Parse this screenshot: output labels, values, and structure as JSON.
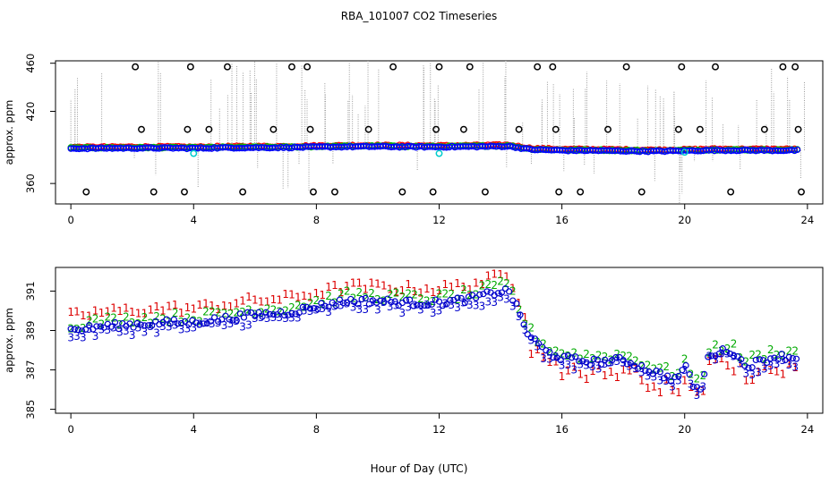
{
  "chart_data": {
    "title": "RBA_101007  CO2 Timeseries",
    "xlabel": "Hour of Day (UTC)",
    "panels": [
      {
        "type": "scatter",
        "ylabel": "approx. ppm",
        "xlim": [
          -0.5,
          24.5
        ],
        "ylim": [
          343,
          462
        ],
        "xticks": [
          0,
          4,
          8,
          12,
          16,
          20,
          24
        ],
        "yticks": [
          360,
          420,
          460
        ],
        "series": [
          {
            "name": "raw spikes",
            "color": "#a0a0a0",
            "style": "dotted-vertical"
          },
          {
            "name": "level 1",
            "color": "#ff0000",
            "style": "circle"
          },
          {
            "name": "level 2",
            "color": "#00bb00",
            "style": "circle"
          },
          {
            "name": "level 3",
            "color": "#0000ff",
            "style": "circle"
          },
          {
            "name": "calibration",
            "color": "#00cccc",
            "style": "circle"
          },
          {
            "name": "outliers",
            "color": "#000000",
            "style": "circle"
          }
        ],
        "baseline": [
          [
            0,
            389.2
          ],
          [
            1,
            389.4
          ],
          [
            2,
            389.5
          ],
          [
            3,
            389.6
          ],
          [
            4,
            389.4
          ],
          [
            5,
            389.8
          ],
          [
            6,
            389.9
          ],
          [
            7,
            390.0
          ],
          [
            8,
            390.4
          ],
          [
            9,
            390.7
          ],
          [
            10,
            390.8
          ],
          [
            11,
            390.6
          ],
          [
            12,
            390.5
          ],
          [
            13,
            390.7
          ],
          [
            14,
            391.0
          ],
          [
            14.3,
            391.0
          ],
          [
            15,
            388.3
          ],
          [
            16,
            387.6
          ],
          [
            17,
            387.5
          ],
          [
            18,
            387.2
          ],
          [
            19,
            386.9
          ],
          [
            20,
            387.3
          ],
          [
            21,
            387.8
          ],
          [
            22,
            387.7
          ],
          [
            23,
            387.6
          ],
          [
            23.7,
            387.6
          ]
        ],
        "outliers": [
          [
            0.5,
            353
          ],
          [
            2.1,
            457
          ],
          [
            2.3,
            405
          ],
          [
            2.7,
            353
          ],
          [
            3.7,
            353
          ],
          [
            3.8,
            405
          ],
          [
            3.9,
            457
          ],
          [
            4.5,
            405
          ],
          [
            5.1,
            457
          ],
          [
            5.6,
            353
          ],
          [
            6.6,
            405
          ],
          [
            7.2,
            457
          ],
          [
            7.7,
            457
          ],
          [
            7.8,
            405
          ],
          [
            7.9,
            353
          ],
          [
            8.6,
            353
          ],
          [
            9.7,
            405
          ],
          [
            10.5,
            457
          ],
          [
            10.8,
            353
          ],
          [
            11.8,
            353
          ],
          [
            11.9,
            405
          ],
          [
            12.0,
            457
          ],
          [
            12.8,
            405
          ],
          [
            13.0,
            457
          ],
          [
            13.5,
            353
          ],
          [
            14.6,
            405
          ],
          [
            15.2,
            457
          ],
          [
            15.7,
            457
          ],
          [
            15.8,
            405
          ],
          [
            15.9,
            353
          ],
          [
            16.6,
            353
          ],
          [
            17.5,
            405
          ],
          [
            18.1,
            457
          ],
          [
            18.6,
            353
          ],
          [
            19.8,
            405
          ],
          [
            19.9,
            457
          ],
          [
            20.5,
            405
          ],
          [
            21.0,
            457
          ],
          [
            21.5,
            353
          ],
          [
            22.6,
            405
          ],
          [
            23.2,
            457
          ],
          [
            23.6,
            457
          ],
          [
            23.7,
            405
          ],
          [
            23.8,
            353
          ]
        ],
        "calibration": [
          [
            4.0,
            385
          ],
          [
            12.0,
            385
          ],
          [
            20.0,
            386
          ]
        ]
      },
      {
        "type": "scatter",
        "ylabel": "approx. ppm",
        "xlim": [
          -0.5,
          24.5
        ],
        "ylim": [
          384.8,
          392.2
        ],
        "xticks": [
          0,
          4,
          8,
          12,
          16,
          20,
          24
        ],
        "yticks": [
          385,
          387,
          389,
          391
        ],
        "marker_labels": {
          "level1": "1",
          "level2": "2",
          "level3": "3",
          "avg": "o"
        },
        "series": [
          {
            "name": "level 1",
            "color": "#dd0000",
            "marker": "1",
            "offset": 0.75
          },
          {
            "name": "level 2",
            "color": "#00aa00",
            "marker": "2",
            "offset": 0.3
          },
          {
            "name": "level 3",
            "color": "#0000cc",
            "marker": "3",
            "offset": -0.25
          },
          {
            "name": "average",
            "color": "#0000cc",
            "marker": "o",
            "offset": 0.0
          }
        ],
        "baseline": [
          [
            0,
            389.0
          ],
          [
            1,
            389.2
          ],
          [
            2,
            389.3
          ],
          [
            3,
            389.4
          ],
          [
            4,
            389.4
          ],
          [
            5,
            389.6
          ],
          [
            6,
            389.8
          ],
          [
            7,
            389.9
          ],
          [
            8,
            390.2
          ],
          [
            9,
            390.5
          ],
          [
            10,
            390.5
          ],
          [
            11,
            390.4
          ],
          [
            12,
            390.4
          ],
          [
            13,
            390.6
          ],
          [
            14,
            391.0
          ],
          [
            14.3,
            391.0
          ],
          [
            14.9,
            388.8
          ],
          [
            15.5,
            387.9
          ],
          [
            16,
            387.6
          ],
          [
            17,
            387.4
          ],
          [
            18,
            387.5
          ],
          [
            19,
            386.9
          ],
          [
            19.7,
            386.5
          ],
          [
            20,
            387.2
          ],
          [
            20.3,
            386.2
          ],
          [
            20.5,
            385.9
          ],
          [
            20.8,
            387.8
          ],
          [
            21.5,
            388.0
          ],
          [
            22,
            387.2
          ],
          [
            23,
            387.7
          ],
          [
            23.7,
            387.6
          ]
        ]
      }
    ]
  }
}
